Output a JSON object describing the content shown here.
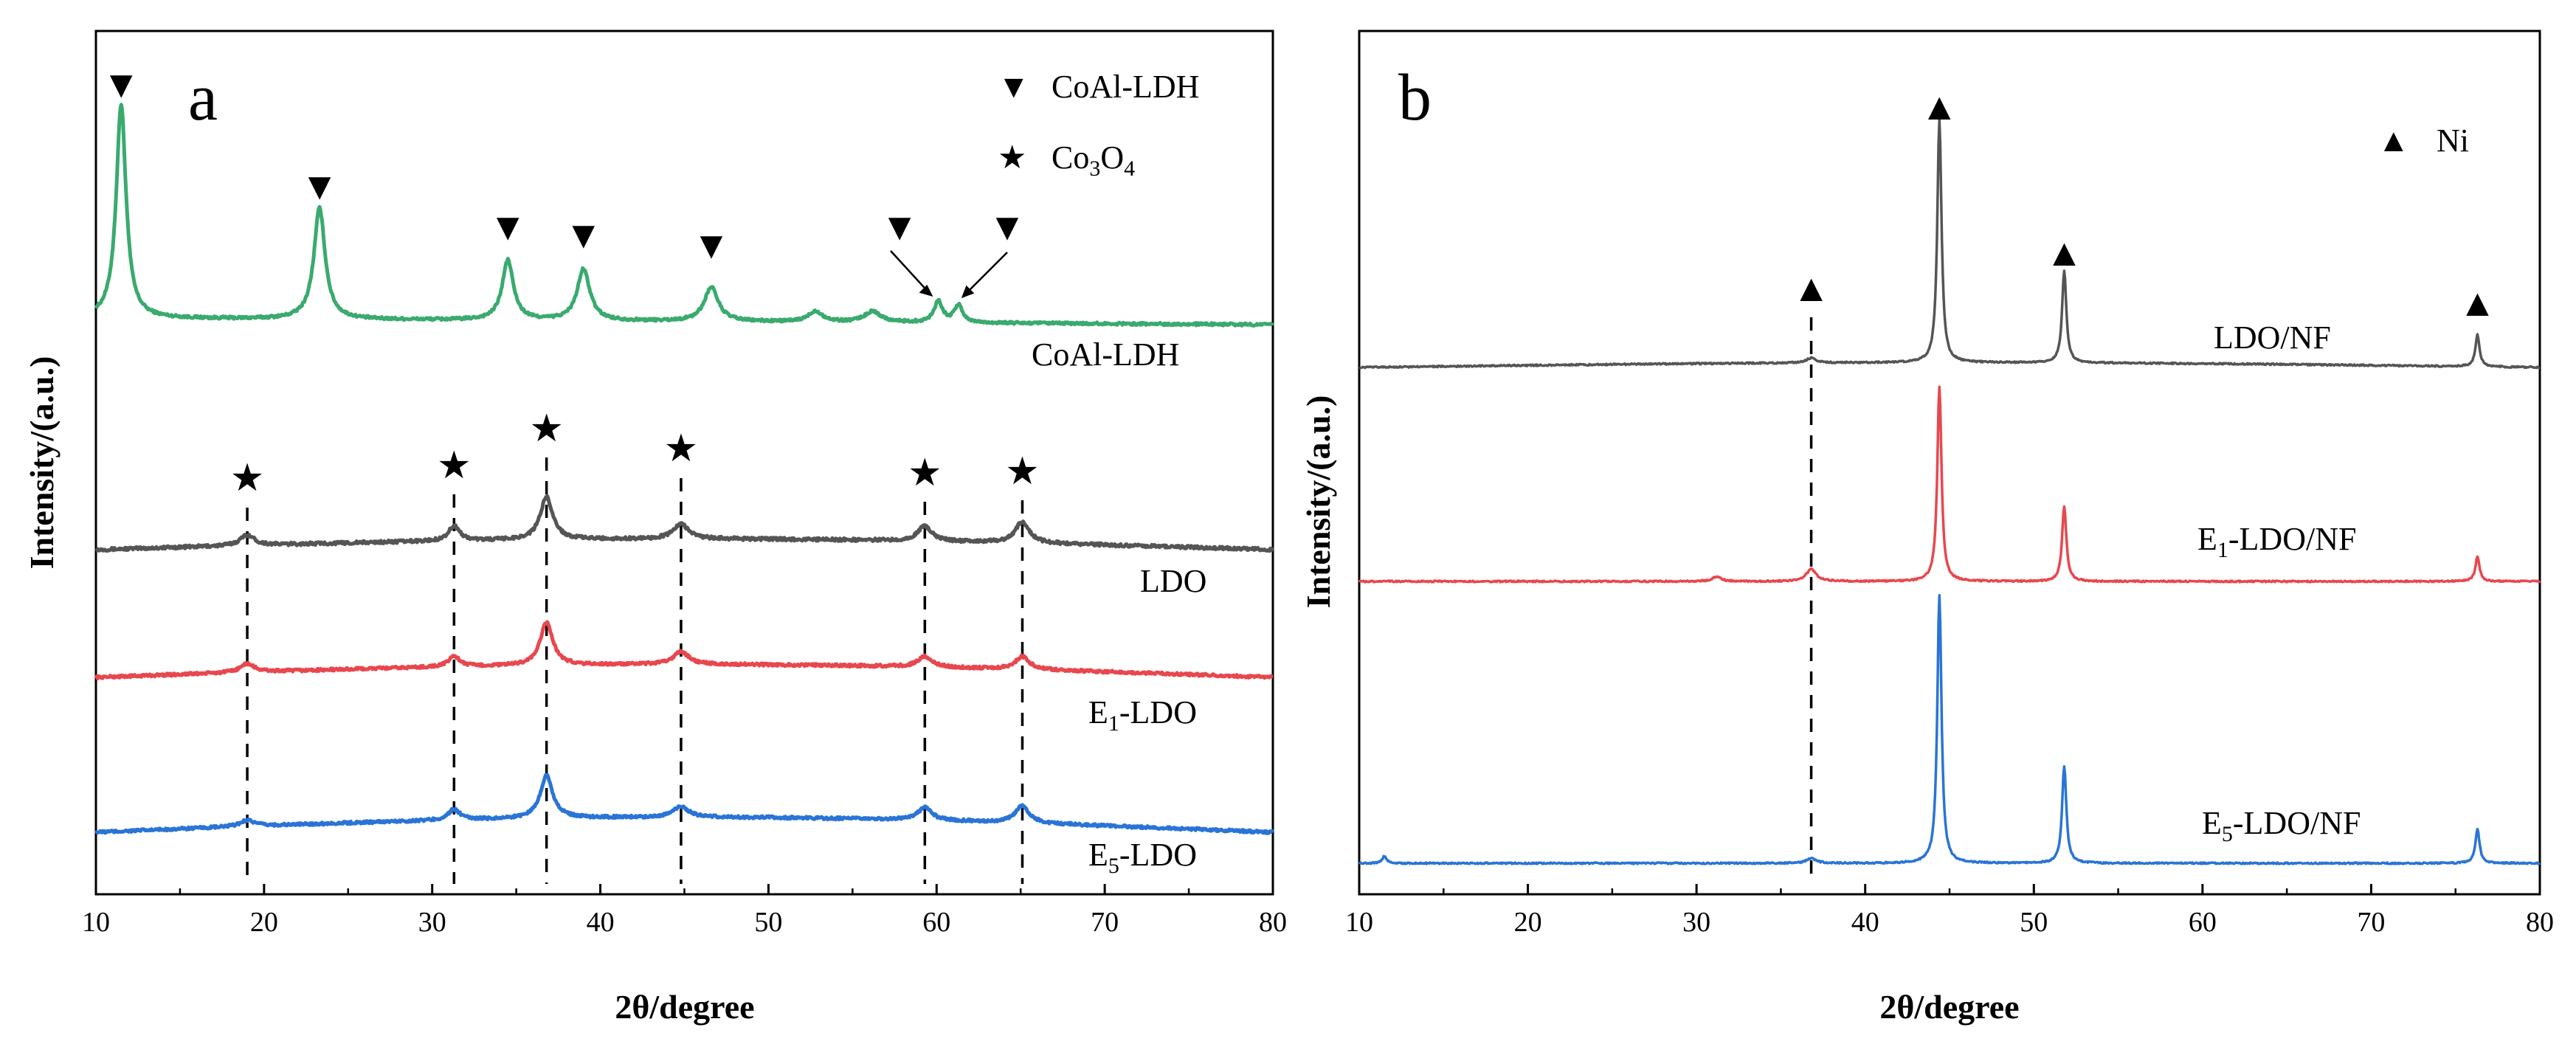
{
  "chart_data": [
    {
      "id": "a",
      "type": "line",
      "panel_label": "a",
      "xlabel": "2θ/degree",
      "ylabel": "Intensity/(a.u.)",
      "xlim": [
        10,
        80
      ],
      "xticks": [
        "10",
        "20",
        "30",
        "40",
        "50",
        "60",
        "70",
        "80"
      ],
      "legend": [
        {
          "symbol": "▼",
          "label": "CoAl-LDH"
        },
        {
          "symbol": "★",
          "label_main": "Co",
          "label_sub1": "3",
          "label_mid": "O",
          "label_sub2": "4"
        }
      ],
      "series": [
        {
          "name": "CoAl-LDH",
          "label": "CoAl-LDH",
          "color": "#3aaa6e",
          "baseline": 1.0,
          "noise": 0.012,
          "drift": [
            0.03,
            0.0
          ],
          "peaks": [
            [
              11.5,
              1.0,
              0.35
            ],
            [
              23.3,
              0.52,
              0.4
            ],
            [
              34.5,
              0.28,
              0.4
            ],
            [
              39.0,
              0.24,
              0.45
            ],
            [
              46.6,
              0.16,
              0.5
            ],
            [
              52.8,
              0.05,
              0.5
            ],
            [
              56.2,
              0.05,
              0.6
            ],
            [
              60.1,
              0.1,
              0.3
            ],
            [
              61.3,
              0.08,
              0.3
            ]
          ]
        },
        {
          "name": "LDO",
          "label": "LDO",
          "color": "#555555",
          "baseline": 1.0,
          "noise": 0.014,
          "drift": [
            0.0,
            0.05
          ],
          "peaks": [
            [
              19.0,
              0.05,
              0.5
            ],
            [
              31.3,
              0.07,
              0.4
            ],
            [
              36.8,
              0.2,
              0.45
            ],
            [
              44.8,
              0.07,
              0.55
            ],
            [
              59.3,
              0.07,
              0.5
            ],
            [
              65.1,
              0.1,
              0.5
            ]
          ]
        },
        {
          "name": "E1-LDO",
          "label_main": "E",
          "label_sub": "1",
          "label_tail": "-LDO",
          "color": "#e8474e",
          "baseline": 1.0,
          "noise": 0.012,
          "drift": [
            0.0,
            0.06
          ],
          "peaks": [
            [
              19.0,
              0.04,
              0.5
            ],
            [
              31.3,
              0.05,
              0.4
            ],
            [
              36.8,
              0.2,
              0.45
            ],
            [
              44.8,
              0.06,
              0.55
            ],
            [
              59.3,
              0.05,
              0.5
            ],
            [
              65.1,
              0.06,
              0.5
            ]
          ]
        },
        {
          "name": "E5-LDO",
          "label_main": "E",
          "label_sub": "5",
          "label_tail": "-LDO",
          "color": "#2a74d6",
          "baseline": 1.0,
          "noise": 0.012,
          "drift": [
            0.0,
            0.07
          ],
          "peaks": [
            [
              19.0,
              0.03,
              0.5
            ],
            [
              31.3,
              0.05,
              0.4
            ],
            [
              36.8,
              0.2,
              0.45
            ],
            [
              44.8,
              0.05,
              0.55
            ],
            [
              59.3,
              0.06,
              0.5
            ],
            [
              65.1,
              0.08,
              0.5
            ]
          ]
        }
      ],
      "markers": {
        "CoAl-LDH": [
          11.5,
          23.3,
          34.5,
          39.0,
          46.6,
          57.8,
          64.2
        ],
        "Co3O4": [
          19.0,
          31.3,
          36.8,
          44.8,
          59.3,
          65.1
        ]
      },
      "dashed_lines": [
        19.0,
        31.3,
        36.8,
        44.8,
        59.3,
        65.1
      ]
    },
    {
      "id": "b",
      "type": "line",
      "panel_label": "b",
      "xlabel": "2θ/degree",
      "ylabel": "Intensity/(a.u.)",
      "xlim": [
        10,
        80
      ],
      "xticks": [
        "10",
        "20",
        "30",
        "40",
        "50",
        "60",
        "70",
        "80"
      ],
      "legend": [
        {
          "symbol": "▲",
          "label": "Ni"
        }
      ],
      "series": [
        {
          "name": "LDO/NF",
          "label": "LDO/NF",
          "color": "#555555",
          "baseline": 1.0,
          "noise": 0.006,
          "drift": [
            0.0,
            0.02
          ],
          "peaks": [
            [
              36.8,
              0.02,
              0.35
            ],
            [
              44.4,
              1.0,
              0.15
            ],
            [
              51.8,
              0.38,
              0.15
            ],
            [
              76.3,
              0.13,
              0.15
            ]
          ]
        },
        {
          "name": "E1-LDO/NF",
          "label_main": "E",
          "label_sub": "1",
          "label_tail": "-LDO/NF",
          "color": "#e8474e",
          "baseline": 1.0,
          "noise": 0.006,
          "drift": [
            0.0,
            0.0
          ],
          "peaks": [
            [
              31.2,
              0.02,
              0.3
            ],
            [
              36.8,
              0.05,
              0.35
            ],
            [
              44.4,
              0.8,
              0.15
            ],
            [
              51.8,
              0.31,
              0.15
            ],
            [
              76.3,
              0.1,
              0.15
            ]
          ]
        },
        {
          "name": "E5-LDO/NF",
          "label_main": "E",
          "label_sub": "5",
          "label_tail": "-LDO/NF",
          "color": "#2a74d6",
          "baseline": 1.0,
          "noise": 0.006,
          "drift": [
            0.0,
            0.0
          ],
          "peaks": [
            [
              11.5,
              0.03,
              0.15
            ],
            [
              36.8,
              0.02,
              0.35
            ],
            [
              44.4,
              1.1,
              0.15
            ],
            [
              51.8,
              0.4,
              0.15
            ],
            [
              76.3,
              0.14,
              0.15
            ]
          ]
        }
      ],
      "markers": {
        "Ni": [
          36.8,
          44.4,
          51.8,
          76.3
        ]
      },
      "dashed_lines": [
        36.8
      ]
    }
  ]
}
